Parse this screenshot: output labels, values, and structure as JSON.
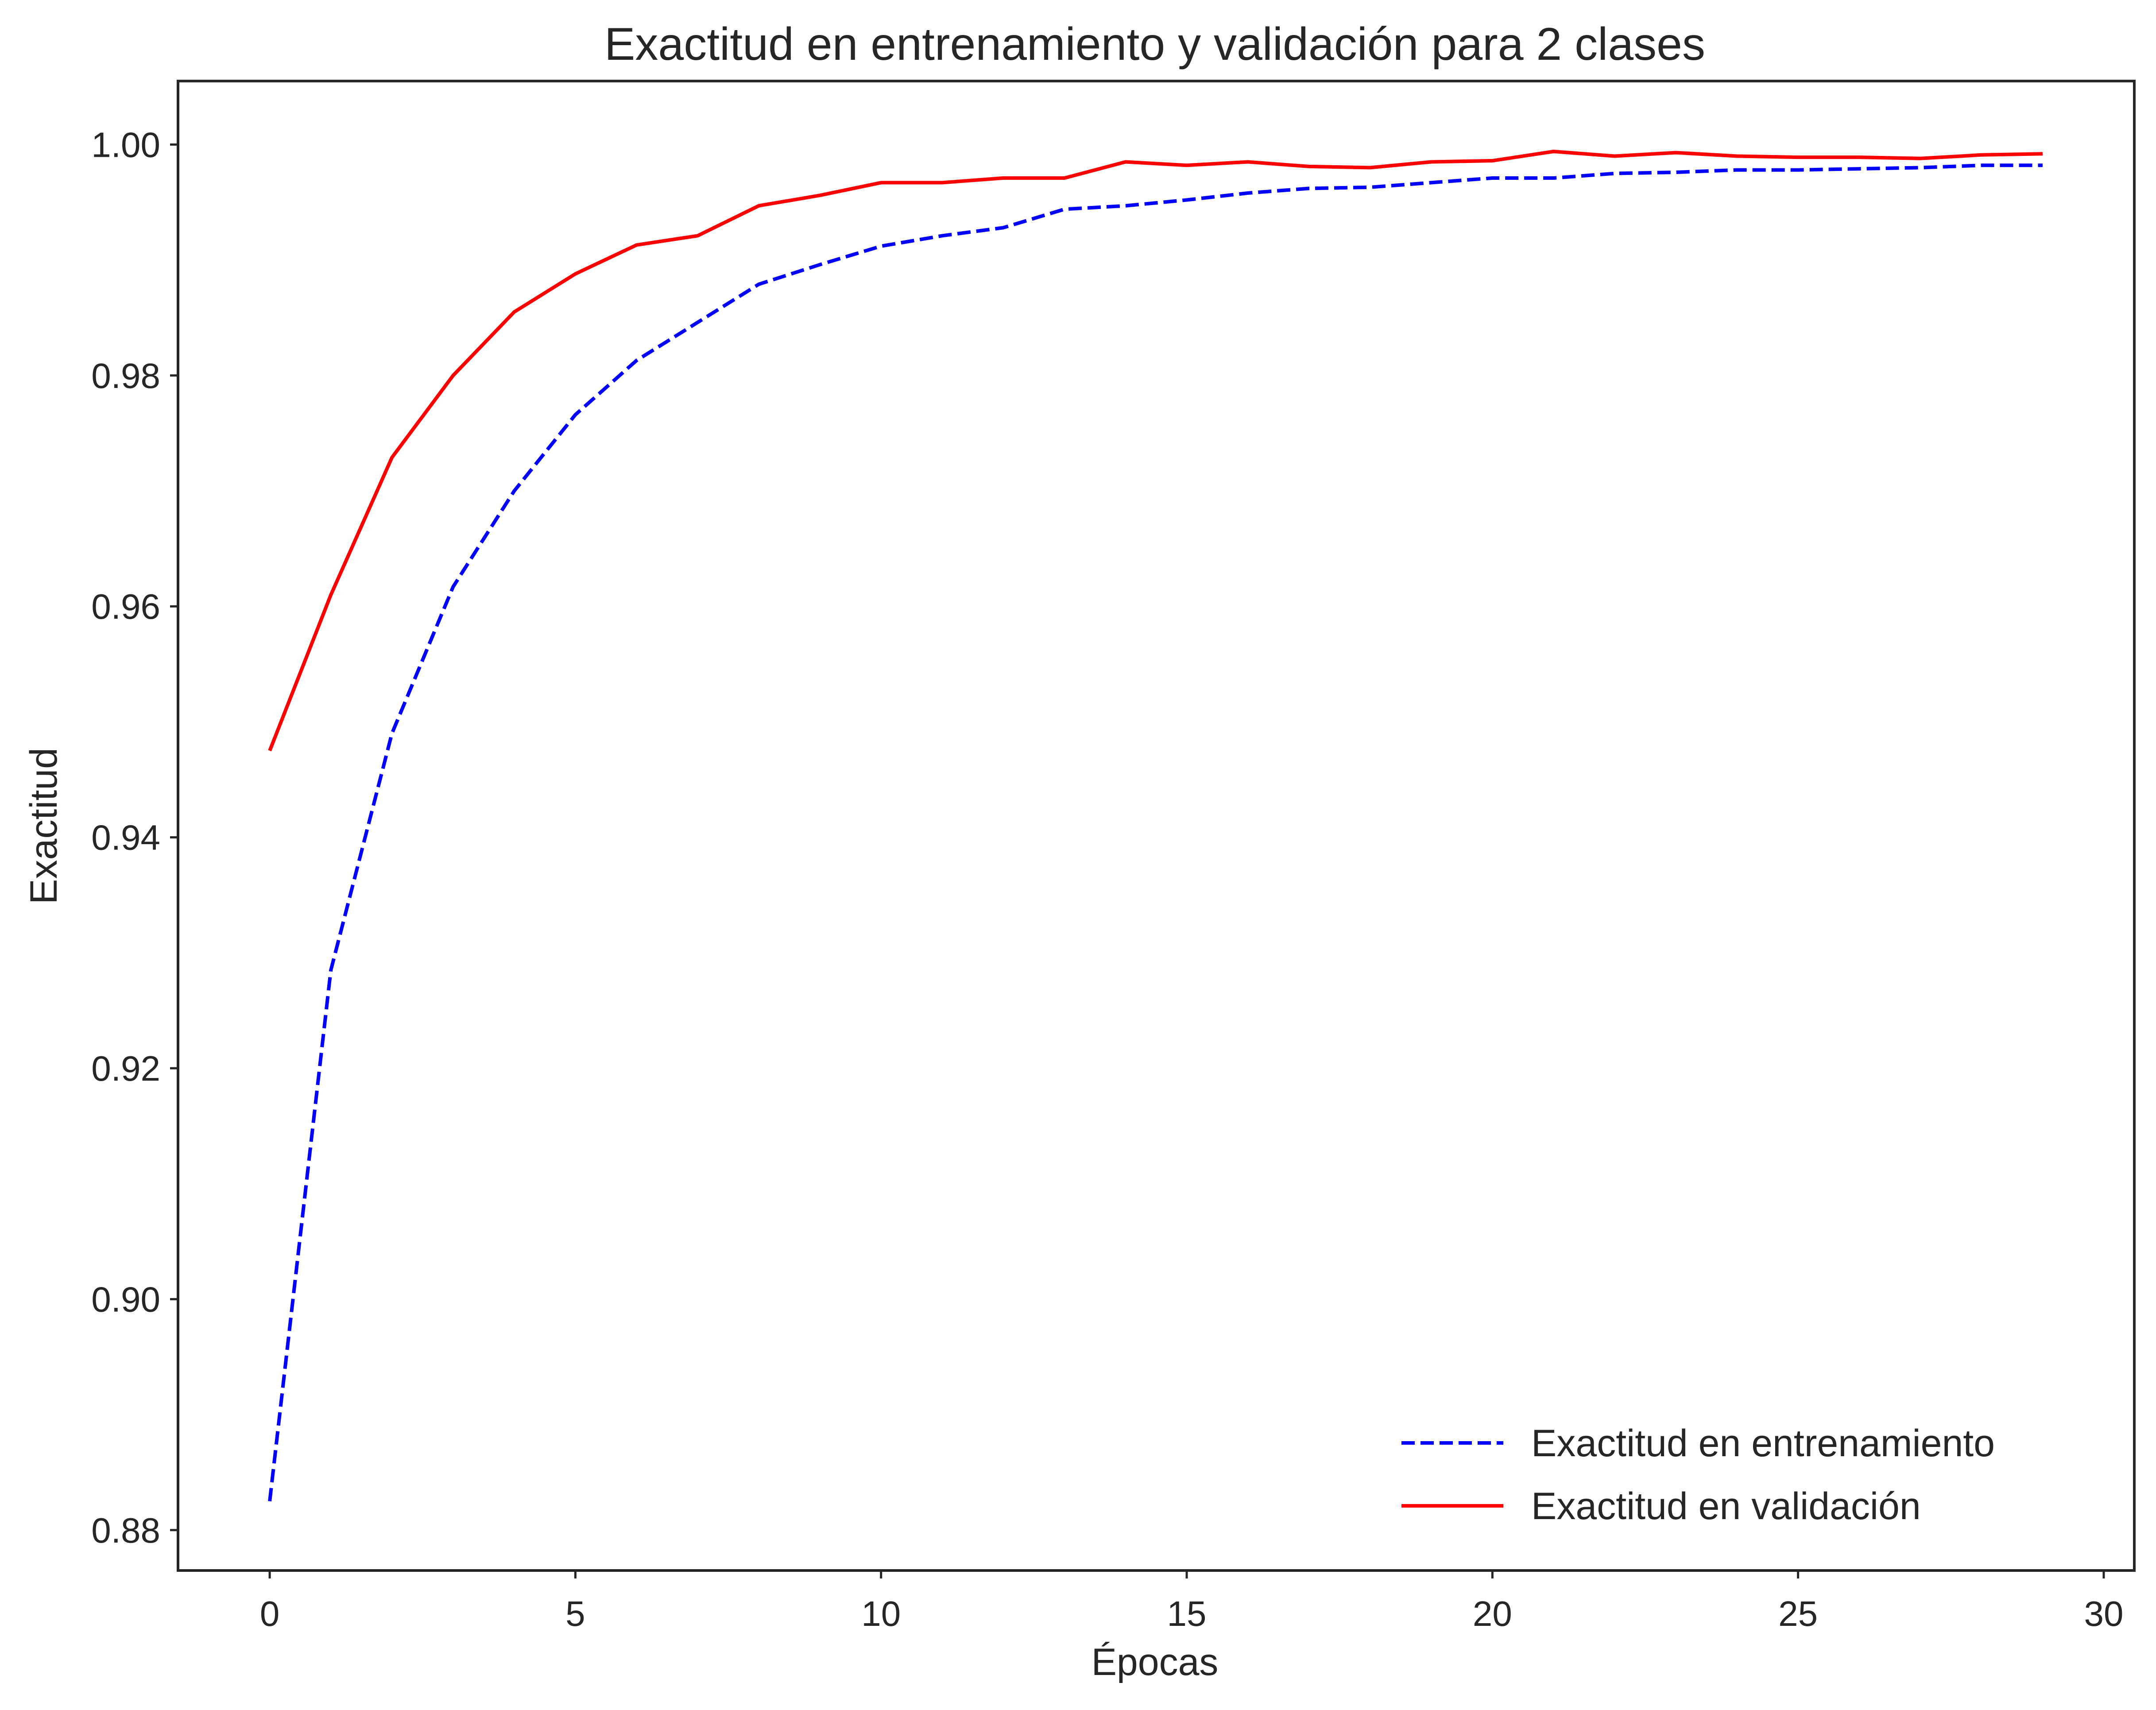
{
  "chart_data": {
    "type": "line",
    "title": "Exactitud en entrenamiento y validación para 2 clases",
    "xlabel": "Épocas",
    "ylabel": "Exactitud",
    "xlim": [
      -1.5,
      30.5
    ],
    "ylim": [
      0.8765,
      1.0055
    ],
    "xticks": [
      0,
      5,
      10,
      15,
      20,
      25,
      30
    ],
    "xtick_labels": [
      "0",
      "5",
      "10",
      "15",
      "20",
      "25",
      "30"
    ],
    "yticks": [
      0.88,
      0.9,
      0.92,
      0.94,
      0.96,
      0.98,
      1.0
    ],
    "ytick_labels": [
      "0.88",
      "0.90",
      "0.92",
      "0.94",
      "0.96",
      "0.98",
      "1.00"
    ],
    "grid": false,
    "legend_position": "lower-right",
    "x": [
      0,
      1,
      2,
      3,
      4,
      5,
      6,
      7,
      8,
      9,
      10,
      11,
      12,
      13,
      14,
      15,
      16,
      17,
      18,
      19,
      20,
      21,
      22,
      23,
      24,
      25,
      26,
      27,
      28,
      29
    ],
    "series": [
      {
        "name": "Exactitud en entrenamiento",
        "color": "#0000ff",
        "style": "dashed",
        "values": [
          0.8825,
          0.9285,
          0.949,
          0.9617,
          0.97,
          0.9766,
          0.9813,
          0.9846,
          0.9879,
          0.9896,
          0.9912,
          0.9921,
          0.9928,
          0.9944,
          0.9947,
          0.9952,
          0.9958,
          0.9962,
          0.9963,
          0.9967,
          0.9971,
          0.9971,
          0.9975,
          0.9976,
          0.9978,
          0.9978,
          0.9979,
          0.998,
          0.9982,
          0.9982
        ]
      },
      {
        "name": "Exactitud en validación",
        "color": "#ff0000",
        "style": "solid",
        "values": [
          0.9475,
          0.961,
          0.9729,
          0.98,
          0.9855,
          0.9888,
          0.9913,
          0.9921,
          0.9947,
          0.9956,
          0.9967,
          0.9967,
          0.9971,
          0.9971,
          0.9985,
          0.9982,
          0.9985,
          0.9981,
          0.998,
          0.9985,
          0.9986,
          0.9994,
          0.999,
          0.9993,
          0.999,
          0.9989,
          0.9989,
          0.9988,
          0.9991,
          0.9992
        ]
      }
    ]
  }
}
